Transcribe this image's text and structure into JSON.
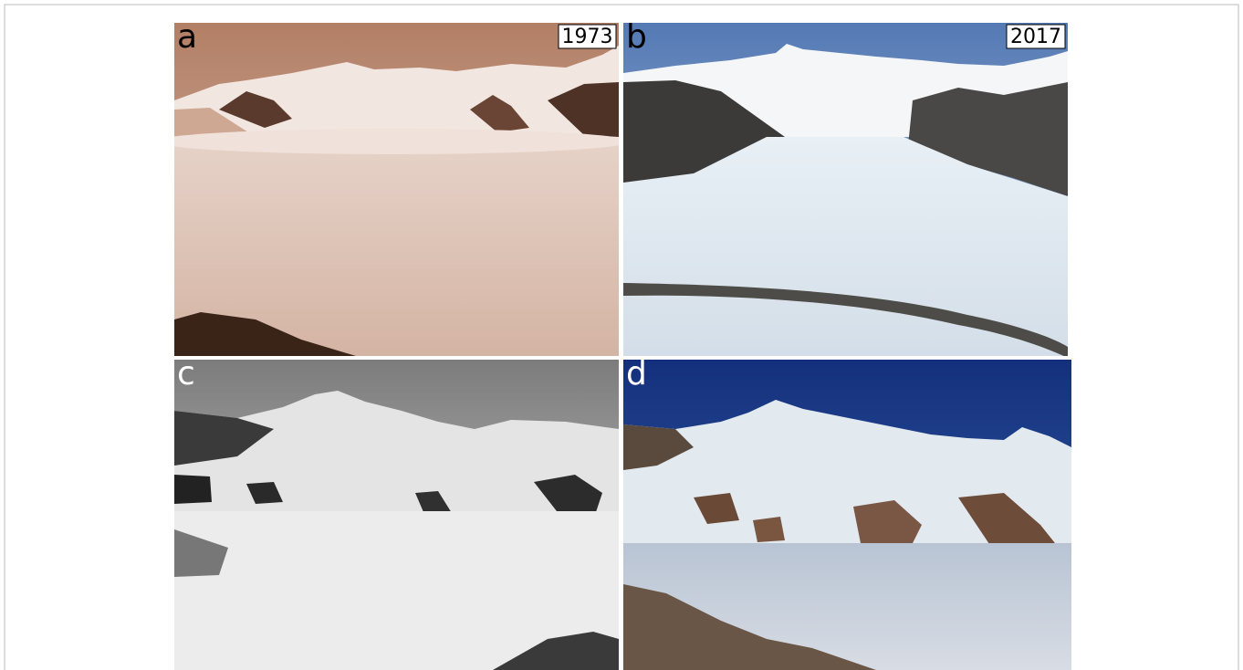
{
  "panels": [
    {
      "label": "a",
      "year": "1973"
    },
    {
      "label": "b",
      "year": "2017"
    },
    {
      "label": "c"
    },
    {
      "label": "d"
    }
  ]
}
